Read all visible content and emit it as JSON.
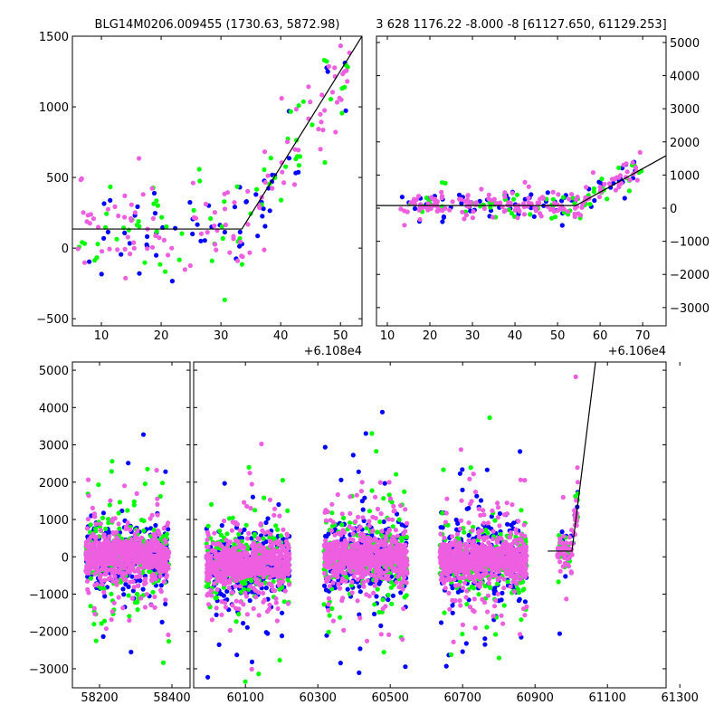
{
  "chart_data": [
    {
      "type": "scatter",
      "panel": "top-left",
      "title": "BLG14M0206.009455 (1730.63, 5872.98)",
      "x_offset_label": "+6.108e4",
      "xlim": [
        5.15,
        53.6
      ],
      "ylim": [
        -550,
        1500
      ],
      "xticks": [
        10,
        20,
        30,
        40,
        50
      ],
      "yticks": [
        -500,
        0,
        500,
        1000,
        1500
      ],
      "model_line": [
        [
          5.15,
          135
        ],
        [
          33.5,
          135
        ],
        [
          53.6,
          1500
        ]
      ],
      "series": [
        {
          "name": "blue",
          "color": "#0000ff",
          "n": 60
        },
        {
          "name": "green",
          "color": "#00ff00",
          "n": 70
        },
        {
          "name": "pink",
          "color": "#ee5ee0",
          "n": 110
        }
      ],
      "noise_sd": 220,
      "x_range": [
        6,
        52
      ]
    },
    {
      "type": "scatter",
      "panel": "top-right",
      "title": "3 628 1176.22 -8.000 -8 [61127.650, 61129.253]",
      "x_offset_label": "+6.106e4",
      "xlim": [
        7.45,
        75.5
      ],
      "ylim": [
        -3550,
        5190
      ],
      "yaxis": "right",
      "xticks": [
        10,
        20,
        30,
        40,
        50,
        60,
        70
      ],
      "yticks": [
        -3000,
        -2000,
        -1000,
        0,
        1000,
        2000,
        3000,
        4000,
        5000
      ],
      "model_line": [
        [
          7.45,
          80
        ],
        [
          54.3,
          80
        ],
        [
          75.5,
          1583
        ]
      ],
      "series": [
        {
          "name": "blue",
          "color": "#0000ff",
          "n": 70
        },
        {
          "name": "green",
          "color": "#00ff00",
          "n": 70
        },
        {
          "name": "pink",
          "color": "#ee5ee0",
          "n": 160
        }
      ],
      "noise_sd": 300,
      "x_range": [
        13,
        70
      ]
    },
    {
      "type": "scatter",
      "panel": "bottom",
      "broken_x_axis": true,
      "segments": [
        {
          "xlim": [
            58125,
            58450
          ],
          "xticks": [
            58200,
            58400
          ]
        },
        {
          "xlim": [
            59957,
            61262
          ],
          "xticks": [
            60100,
            60300,
            60500,
            60700,
            60900,
            61100,
            61300
          ]
        }
      ],
      "ylim": [
        -3510,
        5220
      ],
      "yticks": [
        -3000,
        -2000,
        -1000,
        0,
        1000,
        2000,
        3000,
        4000,
        5000
      ],
      "model_line": [
        [
          60935,
          153
        ],
        [
          61002,
          153
        ],
        [
          61067,
          5220
        ]
      ],
      "clusters": [
        {
          "x": [
            58162,
            58392
          ],
          "y_center": 0
        },
        {
          "x": [
            59992,
            60222
          ],
          "y_center": -200
        },
        {
          "x": [
            60317,
            60547
          ],
          "y_center": 0
        },
        {
          "x": [
            60637,
            60877
          ],
          "y_center": -100
        },
        {
          "x": [
            60962,
            61020
          ],
          "y_center": 0
        }
      ],
      "series": [
        {
          "name": "blue",
          "color": "#0000ff"
        },
        {
          "name": "green",
          "color": "#00ff00"
        },
        {
          "name": "pink",
          "color": "#ee5ee0"
        }
      ]
    }
  ]
}
